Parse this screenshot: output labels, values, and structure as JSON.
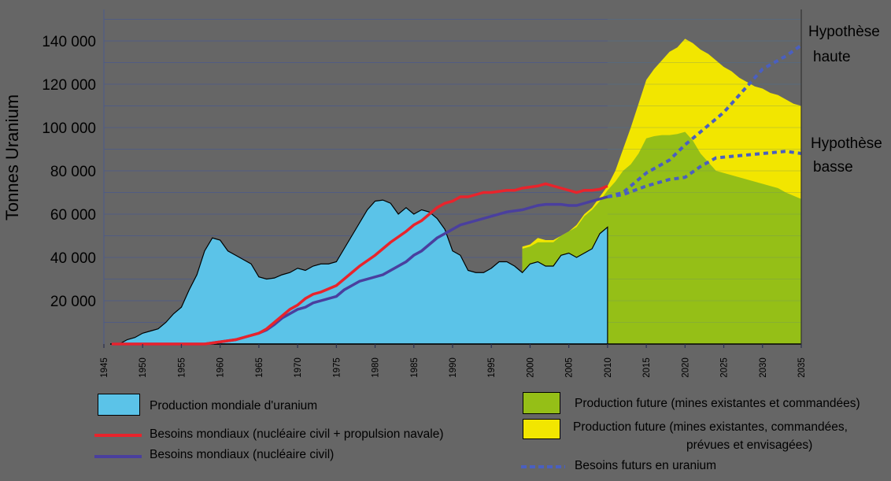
{
  "chart_data": {
    "type": "area",
    "ylabel": "Tonnes Uranium",
    "ylim": [
      0,
      150000
    ],
    "xlim": [
      1945,
      2035
    ],
    "yticks": [
      "20 000",
      "40 000",
      "60 000",
      "80 000",
      "100 000",
      "120 000",
      "140 000"
    ],
    "ytick_values": [
      20000,
      40000,
      60000,
      80000,
      100000,
      120000,
      140000
    ],
    "xticks": [
      "1945",
      "1950",
      "1955",
      "1960",
      "1965",
      "1970",
      "1975",
      "1980",
      "1985",
      "1990",
      "1995",
      "2000",
      "2005",
      "2010",
      "2015",
      "2020",
      "2025",
      "2030",
      "2035"
    ],
    "grid": true,
    "colors": {
      "production": "#5bc3e8",
      "future_existing": "#95bf17",
      "future_all": "#f2e600",
      "needs_naval": "#e8242c",
      "needs_civil": "#4a3f9e",
      "future_needs": "#4a5fc0"
    },
    "series": [
      {
        "name": "Production mondiale d'uranium",
        "kind": "area",
        "x": [
          1946,
          1947,
          1948,
          1949,
          1950,
          1951,
          1952,
          1953,
          1954,
          1955,
          1956,
          1957,
          1958,
          1959,
          1960,
          1961,
          1962,
          1963,
          1964,
          1965,
          1966,
          1967,
          1968,
          1969,
          1970,
          1971,
          1972,
          1973,
          1974,
          1975,
          1976,
          1977,
          1978,
          1979,
          1980,
          1981,
          1982,
          1983,
          1984,
          1985,
          1986,
          1987,
          1988,
          1989,
          1990,
          1991,
          1992,
          1993,
          1994,
          1995,
          1996,
          1997,
          1998,
          1999,
          2000,
          2001,
          2002,
          2003,
          2004,
          2005,
          2006,
          2007,
          2008,
          2009,
          2010
        ],
        "values": [
          0,
          0,
          2000,
          3000,
          5000,
          6000,
          7000,
          10000,
          14000,
          17000,
          25000,
          32000,
          43000,
          49000,
          48000,
          43000,
          41000,
          39000,
          37000,
          31000,
          30000,
          30500,
          32000,
          33000,
          35000,
          34000,
          36000,
          37000,
          37000,
          38000,
          44000,
          50000,
          56000,
          62000,
          66000,
          66500,
          65000,
          60000,
          63000,
          60000,
          62000,
          61000,
          58000,
          53000,
          43000,
          41000,
          34000,
          33000,
          33000,
          35000,
          38000,
          38000,
          36000,
          33000,
          37000,
          38000,
          36000,
          36000,
          41000,
          42000,
          40000,
          42000,
          44000,
          51000,
          54000
        ]
      },
      {
        "name": "Production future (mines existantes, commandées, prévues et envisagées)",
        "kind": "area",
        "x": [
          1999,
          2000,
          2001,
          2002,
          2003,
          2004,
          2005,
          2006,
          2007,
          2008,
          2009,
          2010,
          2011,
          2012,
          2013,
          2014,
          2015,
          2016,
          2017,
          2018,
          2019,
          2020,
          2021,
          2022,
          2023,
          2024,
          2025,
          2026,
          2027,
          2028,
          2029,
          2030,
          2031,
          2032,
          2033,
          2034,
          2035
        ],
        "values": [
          45000,
          46000,
          49000,
          48000,
          48000,
          50000,
          52000,
          55000,
          60000,
          63000,
          68000,
          73000,
          80000,
          90000,
          100000,
          111000,
          122000,
          127000,
          131000,
          135000,
          137000,
          141000,
          139000,
          136000,
          134000,
          131000,
          128000,
          126000,
          123000,
          121000,
          119000,
          118000,
          116000,
          115000,
          113000,
          111000,
          110000
        ]
      },
      {
        "name": "Production future (mines existantes et commandées)",
        "kind": "area",
        "x": [
          1999,
          2000,
          2001,
          2002,
          2003,
          2004,
          2005,
          2006,
          2007,
          2008,
          2009,
          2010,
          2011,
          2012,
          2013,
          2014,
          2015,
          2016,
          2017,
          2018,
          2019,
          2020,
          2021,
          2022,
          2023,
          2024,
          2025,
          2027,
          2030,
          2032,
          2033,
          2035
        ],
        "values": [
          44000,
          45000,
          47000,
          47000,
          47000,
          50000,
          52000,
          54000,
          59000,
          62000,
          66000,
          71000,
          75000,
          80000,
          83000,
          88000,
          95000,
          96000,
          96500,
          96500,
          97000,
          98000,
          94000,
          88000,
          84000,
          80000,
          79000,
          77000,
          74000,
          72000,
          70000,
          67000
        ]
      },
      {
        "name": "Besoins mondiaux (nucléaire civil + propulsion navale)",
        "kind": "line",
        "x": [
          1946,
          1958,
          1959,
          1960,
          1961,
          1962,
          1963,
          1964,
          1965,
          1966,
          1967,
          1968,
          1969,
          1970,
          1971,
          1972,
          1973,
          1974,
          1975,
          1976,
          1977,
          1978,
          1979,
          1980,
          1981,
          1982,
          1983,
          1984,
          1985,
          1986,
          1987,
          1988,
          1989,
          1990,
          1991,
          1992,
          1993,
          1994,
          1995,
          1996,
          1997,
          1998,
          1999,
          2000,
          2001,
          2002,
          2003,
          2004,
          2005,
          2006,
          2007,
          2008,
          2009,
          2010
        ],
        "values": [
          0,
          0,
          500,
          1000,
          1500,
          2000,
          3000,
          4000,
          5000,
          7000,
          10000,
          13000,
          16000,
          18000,
          21000,
          23000,
          24000,
          25500,
          27000,
          30000,
          33000,
          36000,
          38500,
          41000,
          44000,
          47000,
          49500,
          52000,
          55000,
          57000,
          60000,
          63000,
          65000,
          66000,
          68000,
          68000,
          69000,
          70000,
          70000,
          70500,
          71000,
          71000,
          72000,
          72500,
          73000,
          74000,
          73000,
          72000,
          71000,
          70000,
          71000,
          71000,
          71500,
          73000
        ]
      },
      {
        "name": "Besoins mondiaux (nucléaire civil)",
        "kind": "line",
        "x": [
          1946,
          1958,
          1959,
          1960,
          1961,
          1962,
          1963,
          1964,
          1965,
          1966,
          1967,
          1968,
          1969,
          1970,
          1971,
          1972,
          1973,
          1974,
          1975,
          1976,
          1977,
          1978,
          1979,
          1980,
          1981,
          1982,
          1983,
          1984,
          1985,
          1986,
          1987,
          1988,
          1989,
          1990,
          1991,
          1992,
          1993,
          1994,
          1995,
          1996,
          1997,
          1998,
          1999,
          2000,
          2001,
          2002,
          2003,
          2004,
          2005,
          2006,
          2007,
          2008,
          2009,
          2010
        ],
        "values": [
          0,
          0,
          500,
          1000,
          1500,
          2000,
          3000,
          4000,
          5000,
          6500,
          9000,
          12000,
          14000,
          16000,
          17000,
          19000,
          20000,
          21000,
          22000,
          25000,
          27000,
          29000,
          30000,
          31000,
          32000,
          34000,
          36000,
          38000,
          41000,
          43000,
          46000,
          49000,
          51000,
          53000,
          55000,
          56000,
          57000,
          58000,
          59000,
          60000,
          61000,
          61500,
          62000,
          63000,
          64000,
          64500,
          64500,
          64500,
          64000,
          64000,
          65000,
          66000,
          67000,
          68000
        ]
      },
      {
        "name": "Besoins futurs en uranium — Hypothèse haute",
        "kind": "dotted",
        "x": [
          2010,
          2012,
          2015,
          2018,
          2020,
          2022,
          2025,
          2027,
          2030,
          2033,
          2035
        ],
        "values": [
          68000,
          70000,
          79000,
          85000,
          92000,
          98000,
          107000,
          115000,
          127000,
          133000,
          138000
        ]
      },
      {
        "name": "Besoins futurs en uranium — Hypothèse basse",
        "kind": "dotted",
        "x": [
          2010,
          2012,
          2015,
          2018,
          2020,
          2022,
          2024,
          2027,
          2030,
          2033,
          2035
        ],
        "values": [
          68000,
          69000,
          73000,
          76000,
          77000,
          82000,
          86000,
          87000,
          88000,
          89000,
          88000
        ]
      }
    ],
    "annotations": {
      "high_1": "Hypothèse",
      "high_2": "haute",
      "low_1": "Hypothèse",
      "low_2": "basse"
    },
    "legend": {
      "production": "Production mondiale d'uranium",
      "needs_naval": "Besoins mondiaux (nucléaire civil + propulsion navale)",
      "needs_civil": "Besoins mondiaux (nucléaire civil)",
      "future_existing": "Production future (mines existantes et commandées)",
      "future_all_1": "Production future (mines existantes, commandées,",
      "future_all_2": "prévues et envisagées)",
      "future_needs": "Besoins futurs en uranium"
    }
  }
}
